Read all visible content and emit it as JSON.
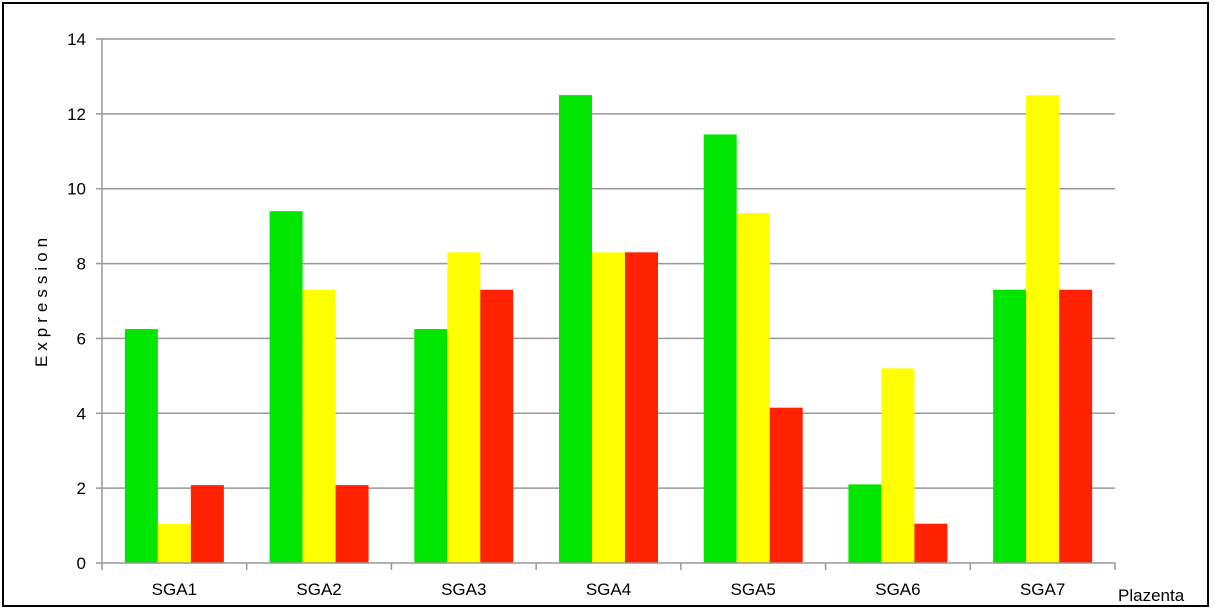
{
  "chart_data": {
    "type": "bar",
    "title": "",
    "xlabel": "Plazenta",
    "ylabel": "Expression",
    "categories": [
      "SGA1",
      "SGA2",
      "SGA3",
      "SGA4",
      "SGA5",
      "SGA6",
      "SGA7"
    ],
    "series": [
      {
        "values": [
          6.25,
          9.4,
          6.25,
          12.5,
          11.45,
          2.1,
          7.3
        ],
        "color": "#00e600"
      },
      {
        "values": [
          1.05,
          7.3,
          8.3,
          8.3,
          9.35,
          5.2,
          12.5
        ],
        "color": "#ffff00"
      },
      {
        "values": [
          2.08,
          2.08,
          7.3,
          8.3,
          4.15,
          1.05,
          7.3
        ],
        "color": "#ff2200"
      }
    ],
    "ylim": [
      0,
      14
    ],
    "yticks": [
      "0",
      "2",
      "4",
      "6",
      "8",
      "10",
      "12",
      "14"
    ],
    "grid": true,
    "legend": "none"
  }
}
